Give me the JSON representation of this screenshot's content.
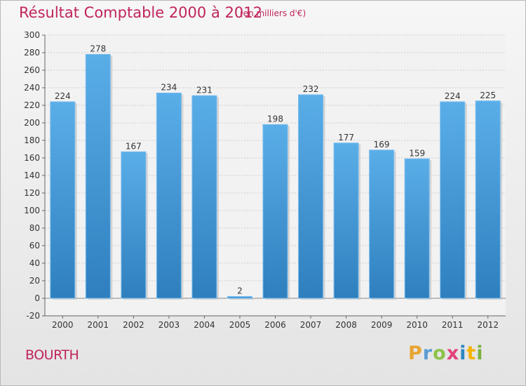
{
  "title": "Résultat Comptable 2000 à 2012",
  "subtitle": "(en milliers d'€)",
  "place": "BOURTH",
  "logo": "Proxiti",
  "colors": {
    "accent": "#c0245c",
    "bar_top": "#5aaee8",
    "bar_bottom": "#2f7fbe"
  },
  "chart_data": {
    "type": "bar",
    "categories": [
      "2000",
      "2001",
      "2002",
      "2003",
      "2004",
      "2005",
      "2006",
      "2007",
      "2008",
      "2009",
      "2010",
      "2011",
      "2012"
    ],
    "values": [
      224,
      278,
      167,
      234,
      231,
      2,
      198,
      232,
      177,
      169,
      159,
      224,
      225
    ],
    "title": "Résultat Comptable 2000 à 2012",
    "xlabel": "",
    "ylabel": "",
    "ylim": [
      -20,
      300
    ],
    "yticks": [
      -20,
      0,
      20,
      40,
      60,
      80,
      100,
      120,
      140,
      160,
      180,
      200,
      220,
      240,
      260,
      280,
      300
    ],
    "grid": true,
    "legend": "none"
  }
}
